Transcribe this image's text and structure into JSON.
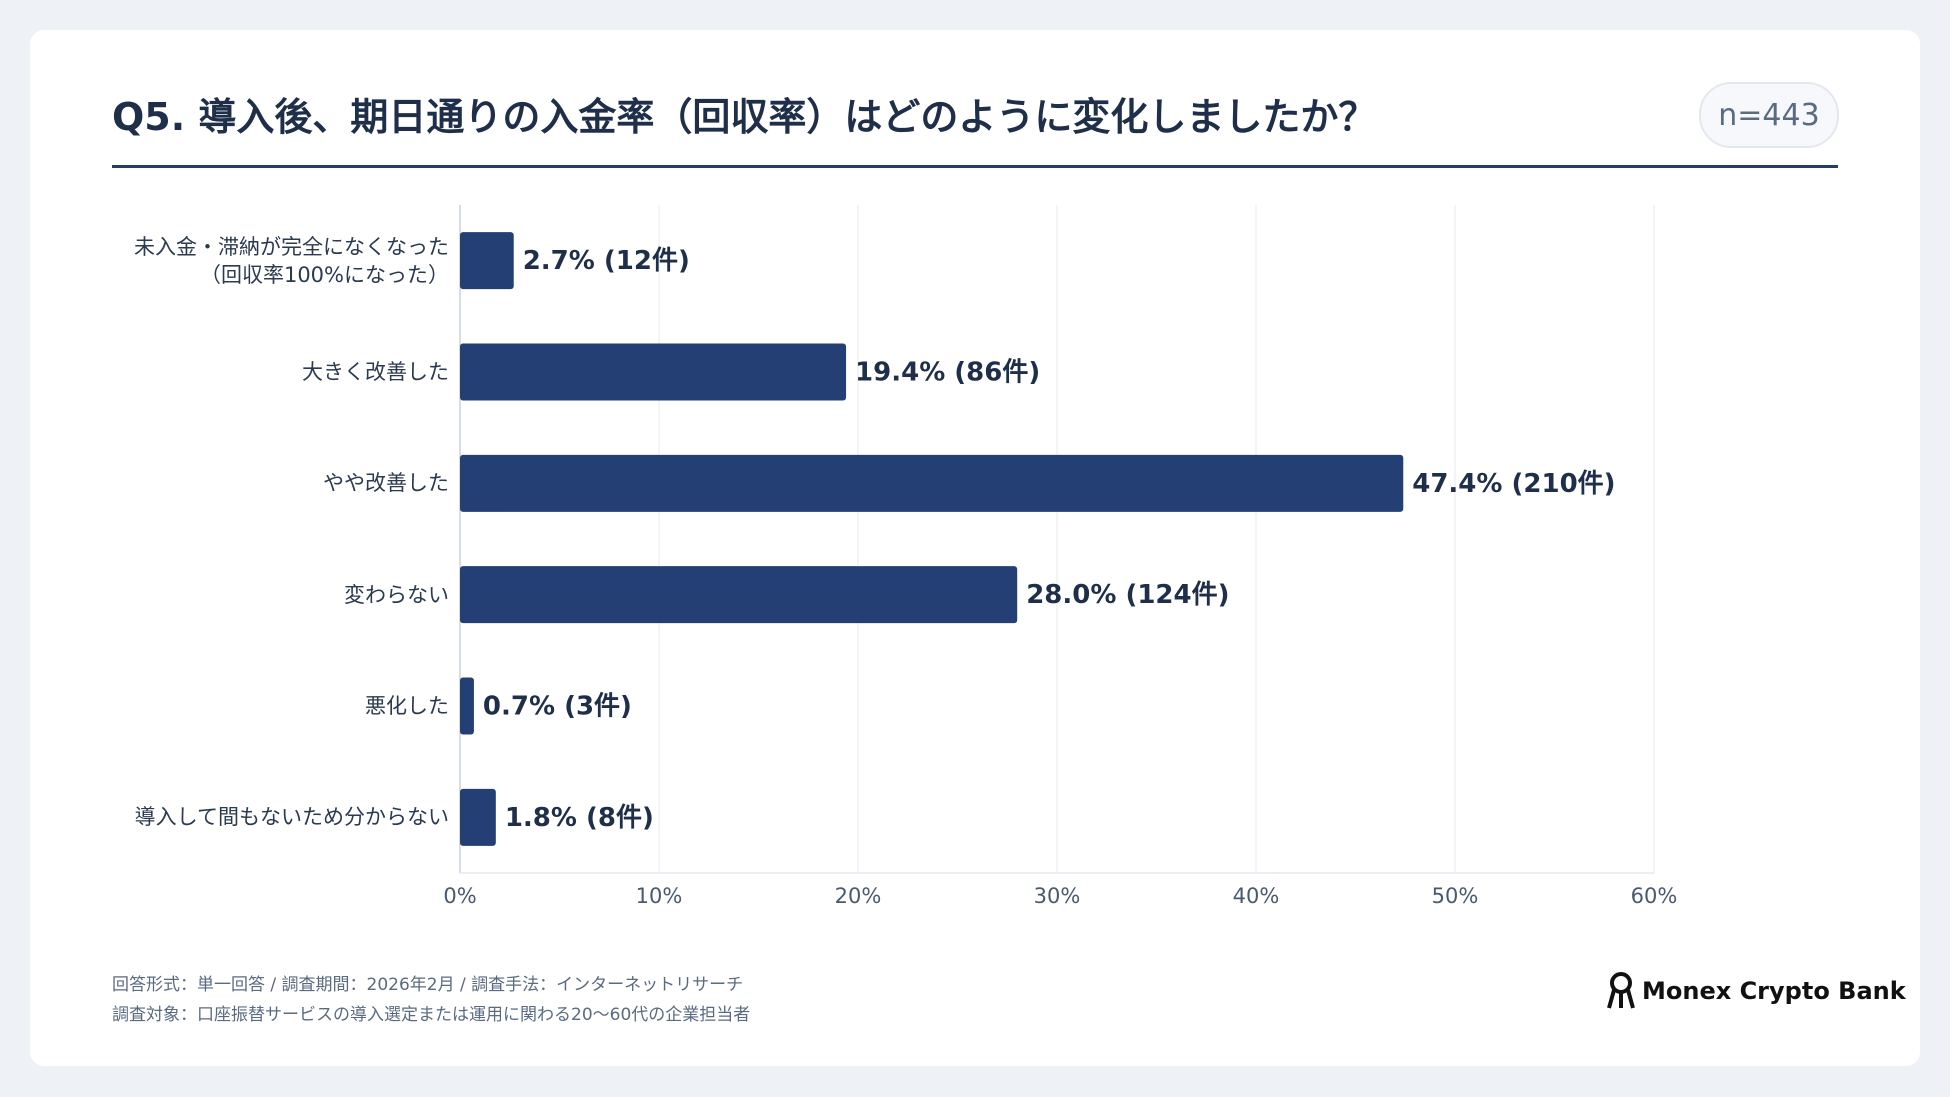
{
  "chart_data": {
    "type": "bar",
    "orientation": "horizontal",
    "title": "Q5. 導入後、期日通りの入金率（回収率）はどのように変化しましたか？",
    "sample_size": "n=443",
    "categories": [
      "未入金・滞納が完全になくなった\n（回収率100%になった）",
      "大きく改善した",
      "やや改善した",
      "変わらない",
      "悪化した",
      "導入して間もないため分からない"
    ],
    "values": [
      2.7,
      19.4,
      47.4,
      28.0,
      0.7,
      1.8
    ],
    "value_labels": [
      "2.7% (12件)",
      "19.4% (86件)",
      "47.4% (210件)",
      "28.0% (124件)",
      "0.7% (3件)",
      "1.8% (8件)"
    ],
    "color": "#243f73",
    "xlim": [
      0,
      60
    ],
    "xticks": [
      {
        "value": 0,
        "label": "0%"
      },
      {
        "value": 10,
        "label": "10%"
      },
      {
        "value": 20,
        "label": "20%"
      },
      {
        "value": 30,
        "label": "30%"
      },
      {
        "value": 40,
        "label": "40%"
      },
      {
        "value": 50,
        "label": "50%"
      },
      {
        "value": 60,
        "label": "60%"
      }
    ],
    "grid": true,
    "notes": [
      "回答形式：単一回答 / 調査期間：2026年2月 / 調査手法：インターネットリサーチ",
      "調査対象：口座振替サービスの導入選定または運用に関わる20〜60代の企業担当者"
    ],
    "brand": "Monex Crypto Bank"
  }
}
